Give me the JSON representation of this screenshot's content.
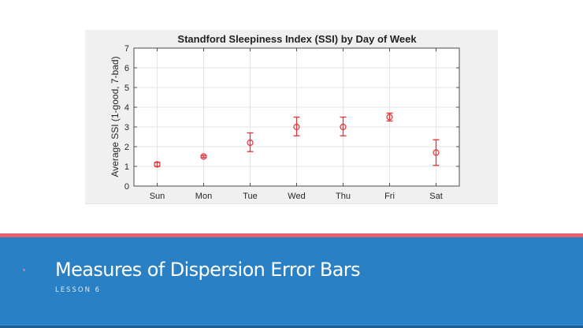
{
  "slide": {
    "title": "Measures of Dispersion Error Bars",
    "subtitle": "LESSON 6",
    "colors": {
      "band": "#2a80c4",
      "stripe": "#e8636a",
      "figure_bg": "#f0f0f0",
      "marker": "#e8323a"
    }
  },
  "chart_data": {
    "type": "scatter",
    "subtype": "errorbar",
    "title": "Standford Sleepiness Index (SSI) by Day of Week",
    "xlabel": "",
    "ylabel": "Average SSI (1-good, 7-bad)",
    "categories": [
      "Sun",
      "Mon",
      "Tue",
      "Wed",
      "Thu",
      "Fri",
      "Sat"
    ],
    "values": [
      1.1,
      1.5,
      2.2,
      3.0,
      3.0,
      3.5,
      1.7
    ],
    "error_low": [
      1.0,
      1.45,
      1.75,
      2.55,
      2.55,
      3.3,
      1.05
    ],
    "error_high": [
      1.2,
      1.55,
      2.7,
      3.5,
      3.5,
      3.7,
      2.35
    ],
    "ylim": [
      0,
      7
    ],
    "yticks": [
      0,
      1,
      2,
      3,
      4,
      5,
      6,
      7
    ],
    "grid": true,
    "marker": "o",
    "marker_color": "#e8323a"
  }
}
